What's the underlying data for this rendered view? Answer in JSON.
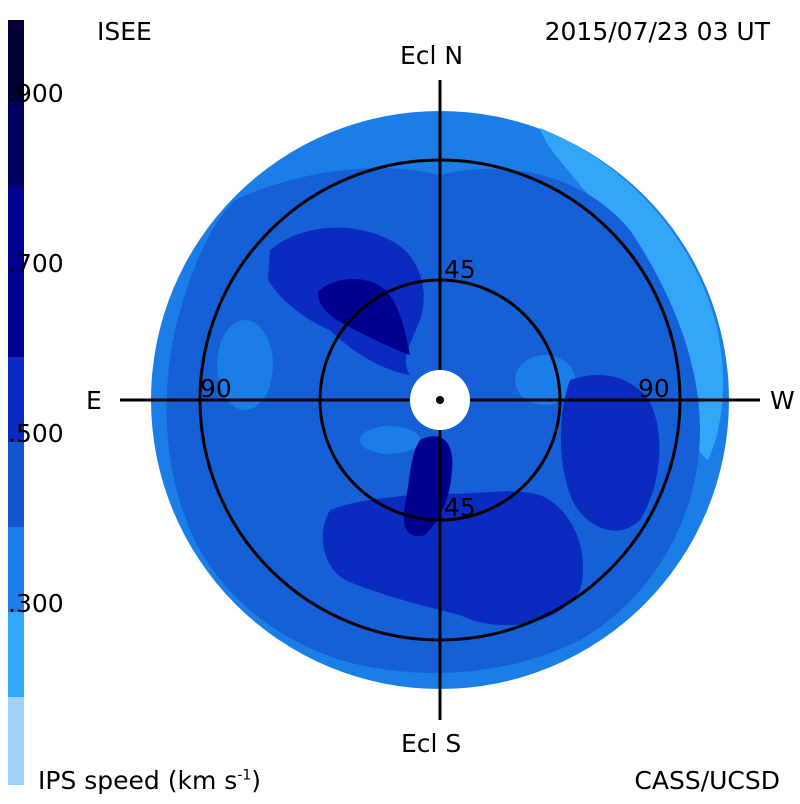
{
  "header": {
    "institution": "ISEE",
    "timestamp": "2015/07/23 03 UT"
  },
  "axes": {
    "north": "Ecl N",
    "south": "Ecl S",
    "east": "E",
    "west": "W"
  },
  "rings": {
    "inner_top": "45",
    "inner_bottom": "45",
    "outer_left": "90",
    "outer_right": "90"
  },
  "colorbar": {
    "label_prefix": "IPS speed (km s",
    "label_exp": "-1",
    "label_suffix": ")",
    "ticks": [
      ".900",
      ".700",
      ".500",
      ".300"
    ],
    "colors": [
      "#000033",
      "#00005e",
      "#00008f",
      "#0a2ac0",
      "#1554cf",
      "#1a7ee6",
      "#34a6f7",
      "#9fd4fa"
    ]
  },
  "footer": {
    "credit": "CASS/UCSD"
  },
  "palette": {
    "level_300": "#1a7ee6",
    "level_400": "#1560d6",
    "level_500": "#1554cf",
    "level_600": "#0a2ac0",
    "level_700": "#00008f",
    "level_low": "#34a6f7"
  }
}
